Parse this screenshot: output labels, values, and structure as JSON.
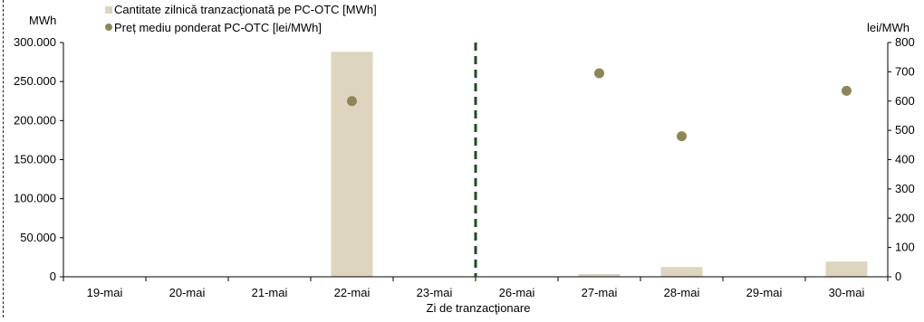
{
  "chart_data": {
    "type": "bar",
    "categories": [
      "19-mai",
      "20-mai",
      "21-mai",
      "22-mai",
      "23-mai",
      "26-mai",
      "27-mai",
      "28-mai",
      "29-mai",
      "30-mai"
    ],
    "series": [
      {
        "name": "Cantitate zilnică tranzacţionată pe PC-OTC [MWh]",
        "type": "bar",
        "axis": "left",
        "color": "#ddd5bd",
        "values": [
          0,
          0,
          0,
          288000,
          0,
          0,
          3500,
          12500,
          0,
          19500
        ]
      },
      {
        "name": "Preț mediu ponderat PC-OTC [lei/MWh]",
        "type": "scatter",
        "axis": "right",
        "color": "#8f8658",
        "values": [
          null,
          null,
          null,
          600,
          null,
          null,
          695,
          480,
          null,
          635
        ]
      }
    ],
    "xlabel": "Zi de tranzacţionare",
    "ylabel_left": "MWh",
    "ylabel_right": "lei/MWh",
    "ylim_left": [
      0,
      300000
    ],
    "ylim_right": [
      0,
      800
    ],
    "yticks_left": [
      "0",
      "50.000",
      "100.000",
      "150.000",
      "200.000",
      "250.000",
      "300.000"
    ],
    "yticks_right": [
      "0",
      "100",
      "200",
      "300",
      "400",
      "500",
      "600",
      "700",
      "800"
    ],
    "divider_after_category": "23-mai",
    "divider_color": "#1f4d1f",
    "legend_position": "top-left",
    "grid": false
  }
}
